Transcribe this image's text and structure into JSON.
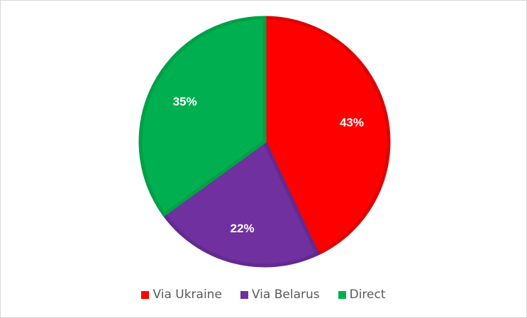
{
  "chart_data": {
    "type": "pie",
    "title": "",
    "categories": [
      "Via Ukraine",
      "Via Belarus",
      "Direct"
    ],
    "values": [
      43,
      22,
      35
    ],
    "data_labels": [
      "43%",
      "22%",
      "35%"
    ],
    "colors": [
      "#FF0000",
      "#7030A0",
      "#00B050"
    ],
    "border_colors": [
      "#E00000",
      "#632A8F",
      "#00A047"
    ],
    "start_angle_deg": 0,
    "direction": "clockwise",
    "legend_position": "bottom"
  }
}
